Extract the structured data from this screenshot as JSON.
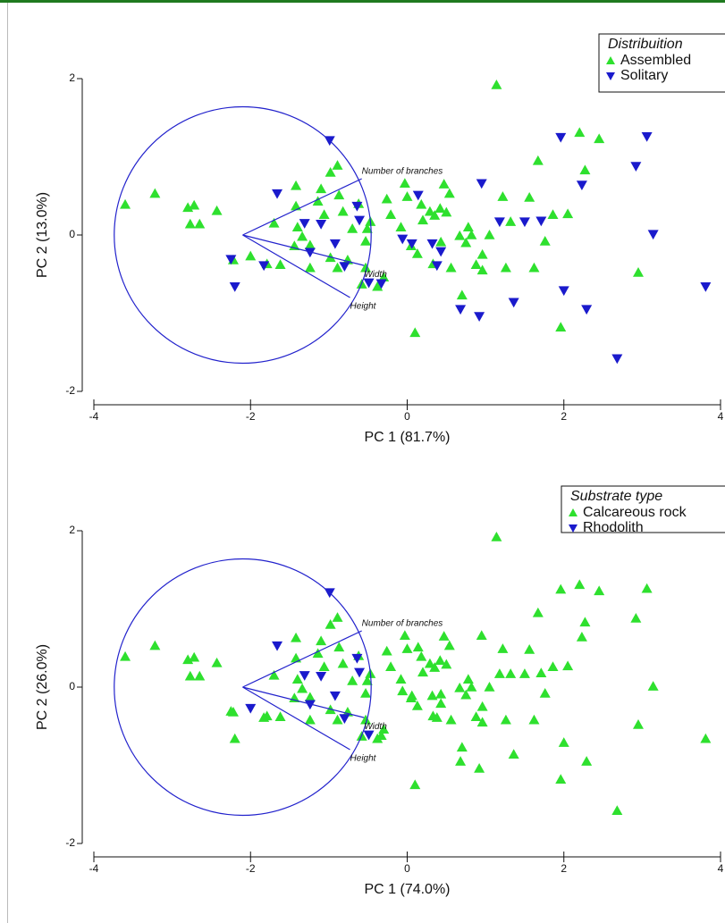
{
  "chart_data": [
    {
      "type": "scatter",
      "legend_title": "Distribuition",
      "legend": "upper right",
      "xlabel": "PC 1 (81.7%)",
      "ylabel": "PC 2 (13.0%)",
      "xlim": [
        -4,
        4
      ],
      "ylim": [
        -2,
        2
      ],
      "xticks": [
        -4,
        -2,
        0,
        2,
        4
      ],
      "yticks": [
        -2,
        0,
        2
      ],
      "circle": {
        "center": [
          -2.1,
          0
        ],
        "radius": 1.64,
        "color": "#2222cc"
      },
      "loadings": [
        {
          "label": "Number of branches",
          "x": -0.58,
          "y": 0.72
        },
        {
          "label": "Width",
          "x": -0.55,
          "y": -0.39
        },
        {
          "label": "Height",
          "x": -0.73,
          "y": -0.8
        }
      ],
      "series": [
        {
          "name": "Assembled",
          "color": "#2ee02e",
          "marker": "triangle-up",
          "x": [
            -3.6,
            -3.22,
            -2.8,
            -2.72,
            -2.77,
            -2.65,
            -2.43,
            -2.22,
            -2.0,
            -1.79,
            -1.62,
            -1.7,
            -1.42,
            -1.42,
            -1.4,
            -1.34,
            -1.44,
            -1.24,
            -1.14,
            -1.1,
            -1.06,
            -0.98,
            -0.89,
            -0.87,
            -0.82,
            -0.98,
            -0.89,
            -0.76,
            -0.7,
            -0.62,
            -0.51,
            -0.47,
            -0.58,
            -0.53,
            -0.38,
            -0.3,
            -0.26,
            -0.21,
            -0.08,
            -0.03,
            0,
            0.05,
            0.13,
            0.18,
            0.2,
            0.29,
            0.35,
            0.42,
            0.43,
            0.47,
            0.54,
            0.5,
            0.56,
            0.67,
            0.7,
            0.75,
            0.78,
            0.82,
            0.88,
            0.96,
            1.05,
            1.14,
            1.22,
            1.32,
            1.26,
            1.56,
            1.62,
            1.67,
            1.86,
            2.05,
            1.96,
            2.2,
            2.27,
            2.45,
            2.95,
            0.1,
            -0.53,
            -1.24,
            0.33,
            0.96,
            1.76
          ],
          "values": [
            0.39,
            0.53,
            0.35,
            0.38,
            0.14,
            0.14,
            0.31,
            -0.32,
            -0.27,
            -0.37,
            -0.38,
            0.15,
            0.63,
            0.37,
            0.1,
            -0.02,
            -0.14,
            -0.13,
            0.43,
            0.59,
            0.26,
            0.8,
            0.89,
            0.51,
            0.3,
            -0.29,
            -0.42,
            -0.32,
            0.08,
            0.4,
            0.08,
            0.17,
            -0.63,
            -0.42,
            -0.66,
            -0.54,
            0.46,
            0.26,
            0.1,
            0.66,
            0.49,
            -0.14,
            -0.24,
            0.39,
            0.19,
            0.3,
            0.25,
            0.34,
            -0.09,
            0.65,
            0.53,
            0.29,
            -0.42,
            -0.01,
            -0.77,
            -0.1,
            0.1,
            0,
            -0.38,
            -0.45,
            0,
            1.92,
            0.49,
            0.17,
            -0.42,
            0.48,
            -0.42,
            0.95,
            0.26,
            0.27,
            -1.18,
            1.31,
            0.83,
            1.23,
            -0.48,
            -1.25,
            -0.08,
            -0.42,
            -0.37,
            -0.25,
            -0.08
          ]
        },
        {
          "name": "Solitary",
          "color": "#1a1acc",
          "marker": "triangle-down",
          "x": [
            -0.99,
            -1.66,
            -2.25,
            -2.2,
            -1.83,
            -1.31,
            -1.24,
            -0.92,
            -0.8,
            -0.64,
            -0.61,
            -0.49,
            -0.33,
            -0.06,
            0.06,
            0.14,
            0.32,
            0.38,
            0.43,
            0.68,
            0.95,
            0.92,
            1.18,
            1.36,
            1.5,
            1.71,
            1.96,
            2.0,
            2.23,
            2.29,
            2.68,
            2.92,
            3.06,
            3.14,
            3.81,
            -1.1
          ],
          "values": [
            1.21,
            0.53,
            -0.31,
            -0.66,
            -0.39,
            0.15,
            -0.22,
            -0.11,
            -0.4,
            0.37,
            0.19,
            -0.61,
            -0.62,
            -0.05,
            -0.11,
            0.51,
            -0.11,
            -0.39,
            -0.21,
            -0.95,
            0.66,
            -1.04,
            0.17,
            -0.86,
            0.17,
            0.18,
            1.25,
            -0.71,
            0.64,
            -0.95,
            -1.58,
            0.88,
            1.26,
            0.01,
            -0.66,
            0.14
          ]
        }
      ]
    },
    {
      "type": "scatter",
      "legend_title": "Substrate type",
      "legend": "upper right",
      "xlabel": "PC 1 (74.0%)",
      "ylabel": "PC 2 (26.0%)",
      "xlim": [
        -4,
        4
      ],
      "ylim": [
        -2,
        2
      ],
      "xticks": [
        -4,
        -2,
        0,
        2,
        4
      ],
      "yticks": [
        -2,
        0,
        2
      ],
      "circle": {
        "center": [
          -2.1,
          0
        ],
        "radius": 1.64,
        "color": "#2222cc"
      },
      "loadings": [
        {
          "label": "Number of branches",
          "x": -0.58,
          "y": 0.72
        },
        {
          "label": "Width",
          "x": -0.55,
          "y": -0.39
        },
        {
          "label": "Height",
          "x": -0.73,
          "y": -0.8
        }
      ],
      "series": [
        {
          "name": "Calcareous rock",
          "color": "#2ee02e",
          "marker": "triangle-up",
          "x": [
            -3.6,
            -3.22,
            -2.8,
            -2.72,
            -2.77,
            -2.65,
            -2.43,
            -2.22,
            -1.79,
            -1.62,
            -1.7,
            -1.42,
            -1.42,
            -1.4,
            -1.34,
            -1.44,
            -1.24,
            -1.14,
            -1.1,
            -1.06,
            -0.98,
            -0.89,
            -0.87,
            -0.82,
            -0.98,
            -0.89,
            -0.76,
            -0.7,
            -0.62,
            -0.51,
            -0.47,
            -0.58,
            -0.53,
            -0.38,
            -0.3,
            -0.26,
            -0.21,
            -0.08,
            -0.03,
            0,
            0.05,
            0.13,
            0.18,
            0.2,
            0.29,
            0.35,
            0.42,
            0.43,
            0.47,
            0.54,
            0.5,
            0.56,
            0.67,
            0.7,
            0.75,
            0.78,
            0.82,
            0.88,
            0.96,
            1.05,
            1.14,
            1.22,
            1.32,
            1.26,
            1.56,
            1.62,
            1.67,
            1.86,
            2.05,
            1.96,
            2.2,
            2.27,
            2.45,
            2.95,
            0.1,
            -0.53,
            -1.24,
            0.33,
            0.96,
            1.76,
            -2.25,
            -2.2,
            -1.83,
            -0.33,
            -0.06,
            0.06,
            0.14,
            0.32,
            0.38,
            0.43,
            0.68,
            0.95,
            0.92,
            1.18,
            1.36,
            1.5,
            1.71,
            1.96,
            2.0,
            2.23,
            2.29,
            2.68,
            2.92,
            3.06,
            3.14,
            3.81
          ],
          "values": [
            0.39,
            0.53,
            0.35,
            0.38,
            0.14,
            0.14,
            0.31,
            -0.32,
            -0.37,
            -0.38,
            0.15,
            0.63,
            0.37,
            0.1,
            -0.02,
            -0.14,
            -0.13,
            0.43,
            0.59,
            0.26,
            0.8,
            0.89,
            0.51,
            0.3,
            -0.29,
            -0.42,
            -0.32,
            0.08,
            0.4,
            0.08,
            0.17,
            -0.63,
            -0.42,
            -0.66,
            -0.54,
            0.46,
            0.26,
            0.1,
            0.66,
            0.49,
            -0.14,
            -0.24,
            0.39,
            0.19,
            0.3,
            0.25,
            0.34,
            -0.09,
            0.65,
            0.53,
            0.29,
            -0.42,
            -0.01,
            -0.77,
            -0.1,
            0.1,
            0,
            -0.38,
            -0.45,
            0,
            1.92,
            0.49,
            0.17,
            -0.42,
            0.48,
            -0.42,
            0.95,
            0.26,
            0.27,
            -1.18,
            1.31,
            0.83,
            1.23,
            -0.48,
            -1.25,
            -0.08,
            -0.42,
            -0.37,
            -0.25,
            -0.08,
            -0.31,
            -0.66,
            -0.39,
            -0.62,
            -0.05,
            -0.11,
            0.51,
            -0.11,
            -0.39,
            -0.21,
            -0.95,
            0.66,
            -1.04,
            0.17,
            -0.86,
            0.17,
            0.18,
            1.25,
            -0.71,
            0.64,
            -0.95,
            -1.58,
            0.88,
            1.26,
            0.01,
            -0.66
          ]
        },
        {
          "name": "Rhodolith",
          "color": "#1a1acc",
          "marker": "triangle-down",
          "x": [
            -0.99,
            -1.66,
            -1.31,
            -1.24,
            -0.92,
            -0.8,
            -0.64,
            -0.61,
            -0.49,
            -1.1,
            -2.0
          ],
          "values": [
            1.21,
            0.53,
            0.15,
            -0.22,
            -0.11,
            -0.4,
            0.37,
            0.19,
            -0.61,
            0.14,
            -0.27
          ]
        }
      ]
    }
  ]
}
